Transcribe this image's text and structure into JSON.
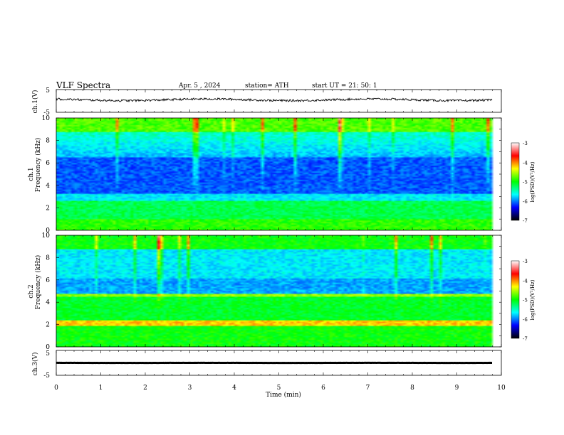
{
  "chart_data": {
    "type": "heatmap",
    "header": {
      "title": "VLF  Spectra",
      "date": "Apr. 5   , 2024",
      "station": "station= ATH",
      "start": "start  UT  =    21: 50: 1"
    },
    "x_axis": {
      "label": "Time  (min)",
      "range": [
        0,
        10
      ],
      "ticks": [
        "0",
        "1",
        "2",
        "3",
        "4",
        "5",
        "6",
        "7",
        "8",
        "9",
        "10"
      ]
    },
    "ch1_waveform": {
      "ylabel": "ch.1(V)",
      "range": [
        -5,
        5
      ],
      "ticks": [
        "5",
        "-5"
      ],
      "baseline_v": 0.5
    },
    "ch1_spectrogram": {
      "ylabel_top": "ch.1",
      "ylabel_bottom": "Frequency  (kHz)",
      "range_khz": [
        0,
        10
      ],
      "ticks": [
        "0",
        "2",
        "4",
        "6",
        "8",
        "10"
      ],
      "data_end_min": 9.8
    },
    "ch2_spectrogram": {
      "ylabel_top": "ch.2",
      "ylabel_bottom": "Frequency  (kHz)",
      "range_khz": [
        0,
        10
      ],
      "ticks": [
        "0",
        "2",
        "4",
        "6",
        "8",
        "10"
      ],
      "data_end_min": 9.8
    },
    "ch3_waveform": {
      "ylabel": "ch.3(V)",
      "range": [
        -5,
        5
      ],
      "ticks": [
        "5",
        "-5"
      ],
      "baseline_v": 0.0
    },
    "colorbar": {
      "label": "log(PSD)(V²/Hz)",
      "range": [
        -7,
        -3
      ],
      "ticks": [
        "-3",
        "-4",
        "-5",
        "-6",
        "-7"
      ],
      "colors": [
        "#000000",
        "#0000ff",
        "#00ffff",
        "#00ff00",
        "#ffff00",
        "#ff0000",
        "#ffffff"
      ]
    }
  }
}
